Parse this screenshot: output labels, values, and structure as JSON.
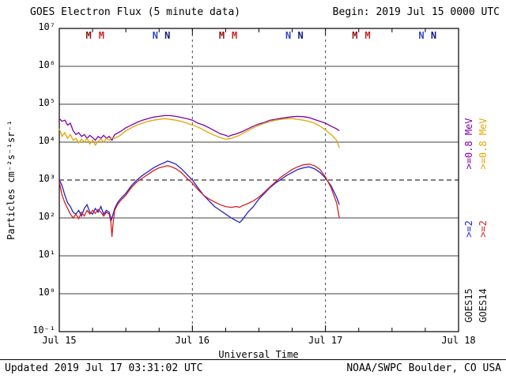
{
  "header": {
    "title": "GOES Electron Flux (5 minute data)",
    "begin": "Begin: 2019 Jul 15 0000 UTC"
  },
  "footer": {
    "updated": "Updated 2019 Jul 17 03:31:02 UTC",
    "source": "NOAA/SWPC Boulder, CO USA"
  },
  "axes": {
    "ylabel": "Particles cm⁻²s⁻¹sr⁻¹",
    "xlabel": "Universal Time",
    "y_tick_labels": [
      "10⁷",
      "10⁶",
      "10⁵",
      "10⁴",
      "10³",
      "10²",
      "10¹",
      "10⁰",
      "10⁻¹"
    ],
    "y_exponents": [
      7,
      6,
      5,
      4,
      3,
      2,
      1,
      0,
      -1
    ],
    "x_tick_labels": [
      "Jul 15",
      "Jul 16",
      "Jul 17",
      "Jul 18"
    ],
    "x_tick_hours": [
      0,
      24,
      48,
      72
    ],
    "threshold_exponent": 3,
    "day_line_hours": [
      24,
      48
    ]
  },
  "legend": {
    "columns": [
      {
        "satellite": "GOES15",
        "energy_high": ">=0.8 MeV",
        "energy_low": ">=2",
        "color_high": "#7d00a8",
        "color_low": "#2323c8",
        "color_label": "#111111"
      },
      {
        "satellite": "GOES14",
        "energy_high": ">=0.8 MeV",
        "energy_low": ">=2",
        "color_high": "#dfa800",
        "color_low": "#d42020",
        "color_label": "#111111"
      }
    ]
  },
  "markers": {
    "midnight_label": "M",
    "noon_label": "N",
    "midnight": [
      {
        "color": "#8f1010",
        "hours": [
          5.3,
          29.3,
          53.3
        ]
      },
      {
        "color": "#cc2222",
        "hours": [
          7.6,
          31.6,
          55.6
        ]
      }
    ],
    "noon": [
      {
        "color": "#2b46cc",
        "hours": [
          17.3,
          41.3,
          65.3
        ]
      },
      {
        "color": "#101a86",
        "hours": [
          19.5,
          43.5,
          67.5
        ]
      }
    ]
  },
  "chart_data": {
    "type": "line",
    "title": "GOES Electron Flux (5 minute data)",
    "xlabel": "Universal Time",
    "ylabel": "Particles cm⁻²s⁻¹sr⁻¹",
    "x_unit": "hours since 2019-07-15 00:00 UTC",
    "y_scale": "log10",
    "ylim_log10": [
      -1,
      7
    ],
    "xlim_hours": [
      0,
      72
    ],
    "grid": "horizontal decades solid, threshold 10^3 dashed, day boundaries dashed vertical",
    "legend_position": "right, rotated 90",
    "series": [
      {
        "name": "GOES15 >=0.8 MeV",
        "color": "#7d00a8",
        "points": [
          [
            0,
            4.62
          ],
          [
            0.5,
            4.55
          ],
          [
            1,
            4.58
          ],
          [
            1.5,
            4.45
          ],
          [
            2,
            4.5
          ],
          [
            2.5,
            4.3
          ],
          [
            3,
            4.2
          ],
          [
            3.5,
            4.25
          ],
          [
            4,
            4.15
          ],
          [
            4.5,
            4.2
          ],
          [
            5,
            4.1
          ],
          [
            5.5,
            4.18
          ],
          [
            6,
            4.12
          ],
          [
            6.5,
            4.05
          ],
          [
            7,
            4.15
          ],
          [
            7.5,
            4.1
          ],
          [
            8,
            4.18
          ],
          [
            8.5,
            4.1
          ],
          [
            9,
            4.15
          ],
          [
            9.5,
            4.05
          ],
          [
            10,
            4.2
          ],
          [
            11,
            4.28
          ],
          [
            12,
            4.38
          ],
          [
            13,
            4.45
          ],
          [
            14,
            4.52
          ],
          [
            15,
            4.58
          ],
          [
            16,
            4.62
          ],
          [
            17,
            4.66
          ],
          [
            18,
            4.68
          ],
          [
            19,
            4.7
          ],
          [
            20,
            4.7
          ],
          [
            21,
            4.68
          ],
          [
            22,
            4.65
          ],
          [
            23,
            4.62
          ],
          [
            24,
            4.58
          ],
          [
            25,
            4.5
          ],
          [
            26,
            4.45
          ],
          [
            27,
            4.38
          ],
          [
            28,
            4.3
          ],
          [
            29,
            4.22
          ],
          [
            30,
            4.18
          ],
          [
            30.5,
            4.15
          ],
          [
            31,
            4.18
          ],
          [
            32,
            4.22
          ],
          [
            33,
            4.28
          ],
          [
            34,
            4.35
          ],
          [
            35,
            4.42
          ],
          [
            36,
            4.48
          ],
          [
            37,
            4.52
          ],
          [
            38,
            4.58
          ],
          [
            39,
            4.6
          ],
          [
            40,
            4.63
          ],
          [
            41,
            4.65
          ],
          [
            42,
            4.67
          ],
          [
            43,
            4.68
          ],
          [
            44,
            4.67
          ],
          [
            45,
            4.65
          ],
          [
            46,
            4.6
          ],
          [
            47,
            4.55
          ],
          [
            48,
            4.5
          ],
          [
            49,
            4.42
          ],
          [
            50,
            4.35
          ],
          [
            50.5,
            4.3
          ]
        ]
      },
      {
        "name": "GOES14 >=0.8 MeV",
        "color": "#dfa800",
        "points": [
          [
            0,
            4.35
          ],
          [
            0.5,
            4.15
          ],
          [
            1,
            4.25
          ],
          [
            1.5,
            4.1
          ],
          [
            2,
            4.2
          ],
          [
            2.5,
            4.05
          ],
          [
            3,
            4.1
          ],
          [
            3.5,
            3.98
          ],
          [
            4,
            4.08
          ],
          [
            4.5,
            4.0
          ],
          [
            5,
            4.1
          ],
          [
            5.5,
            3.95
          ],
          [
            6,
            4.05
          ],
          [
            6.5,
            3.92
          ],
          [
            7,
            4.02
          ],
          [
            7.5,
            4.08
          ],
          [
            8,
            4.0
          ],
          [
            8.5,
            4.1
          ],
          [
            9,
            4.05
          ],
          [
            9.5,
            4.12
          ],
          [
            10,
            4.1
          ],
          [
            11,
            4.18
          ],
          [
            12,
            4.3
          ],
          [
            13,
            4.38
          ],
          [
            14,
            4.45
          ],
          [
            15,
            4.5
          ],
          [
            16,
            4.55
          ],
          [
            17,
            4.58
          ],
          [
            18,
            4.6
          ],
          [
            19,
            4.62
          ],
          [
            20,
            4.6
          ],
          [
            21,
            4.58
          ],
          [
            22,
            4.55
          ],
          [
            23,
            4.5
          ],
          [
            24,
            4.45
          ],
          [
            25,
            4.4
          ],
          [
            26,
            4.32
          ],
          [
            27,
            4.25
          ],
          [
            28,
            4.18
          ],
          [
            29,
            4.12
          ],
          [
            30,
            4.08
          ],
          [
            31,
            4.1
          ],
          [
            32,
            4.15
          ],
          [
            33,
            4.22
          ],
          [
            34,
            4.3
          ],
          [
            35,
            4.38
          ],
          [
            36,
            4.44
          ],
          [
            37,
            4.5
          ],
          [
            38,
            4.54
          ],
          [
            39,
            4.58
          ],
          [
            40,
            4.6
          ],
          [
            41,
            4.62
          ],
          [
            42,
            4.62
          ],
          [
            43,
            4.6
          ],
          [
            44,
            4.58
          ],
          [
            45,
            4.55
          ],
          [
            46,
            4.5
          ],
          [
            47,
            4.42
          ],
          [
            48,
            4.32
          ],
          [
            49,
            4.2
          ],
          [
            50,
            4.05
          ],
          [
            50.5,
            3.85
          ]
        ]
      },
      {
        "name": "GOES15 >=2 MeV",
        "color": "#2323c8",
        "points": [
          [
            0,
            3.0
          ],
          [
            0.5,
            2.85
          ],
          [
            1,
            2.6
          ],
          [
            1.5,
            2.4
          ],
          [
            2,
            2.3
          ],
          [
            2.5,
            2.15
          ],
          [
            3,
            2.1
          ],
          [
            3.5,
            2.2
          ],
          [
            4,
            2.05
          ],
          [
            4.5,
            2.25
          ],
          [
            5,
            2.35
          ],
          [
            5.5,
            2.15
          ],
          [
            6,
            2.1
          ],
          [
            6.5,
            2.25
          ],
          [
            7,
            2.15
          ],
          [
            7.5,
            2.3
          ],
          [
            8,
            2.1
          ],
          [
            8.5,
            2.2
          ],
          [
            9,
            2.15
          ],
          [
            9.4,
            1.95
          ],
          [
            9.6,
            2.05
          ],
          [
            10,
            2.25
          ],
          [
            10.5,
            2.4
          ],
          [
            11,
            2.5
          ],
          [
            12,
            2.65
          ],
          [
            13,
            2.85
          ],
          [
            14,
            3.0
          ],
          [
            15,
            3.12
          ],
          [
            16,
            3.22
          ],
          [
            17,
            3.32
          ],
          [
            18,
            3.4
          ],
          [
            19,
            3.46
          ],
          [
            19.5,
            3.5
          ],
          [
            20,
            3.48
          ],
          [
            21,
            3.42
          ],
          [
            22,
            3.3
          ],
          [
            23,
            3.15
          ],
          [
            24,
            3.0
          ],
          [
            25,
            2.8
          ],
          [
            26,
            2.6
          ],
          [
            27,
            2.45
          ],
          [
            28,
            2.3
          ],
          [
            29,
            2.2
          ],
          [
            30,
            2.1
          ],
          [
            31,
            2.0
          ],
          [
            32,
            1.92
          ],
          [
            32.5,
            1.88
          ],
          [
            33,
            1.95
          ],
          [
            34,
            2.15
          ],
          [
            35,
            2.3
          ],
          [
            36,
            2.5
          ],
          [
            37,
            2.65
          ],
          [
            38,
            2.8
          ],
          [
            39,
            2.92
          ],
          [
            40,
            3.02
          ],
          [
            41,
            3.12
          ],
          [
            42,
            3.2
          ],
          [
            43,
            3.28
          ],
          [
            44,
            3.32
          ],
          [
            45,
            3.35
          ],
          [
            46,
            3.3
          ],
          [
            47,
            3.2
          ],
          [
            48,
            3.05
          ],
          [
            49,
            2.85
          ],
          [
            50,
            2.55
          ],
          [
            50.5,
            2.35
          ]
        ]
      },
      {
        "name": "GOES14 >=2 MeV",
        "color": "#d42020",
        "points": [
          [
            0,
            2.95
          ],
          [
            0.5,
            2.6
          ],
          [
            1,
            2.4
          ],
          [
            1.5,
            2.25
          ],
          [
            2,
            2.1
          ],
          [
            2.5,
            2.0
          ],
          [
            3,
            2.1
          ],
          [
            3.5,
            1.98
          ],
          [
            4,
            2.15
          ],
          [
            4.5,
            2.05
          ],
          [
            5,
            2.2
          ],
          [
            5.5,
            2.1
          ],
          [
            6,
            2.2
          ],
          [
            6.5,
            2.12
          ],
          [
            7,
            2.22
          ],
          [
            7.5,
            2.15
          ],
          [
            8,
            2.05
          ],
          [
            8.5,
            2.15
          ],
          [
            9,
            2.1
          ],
          [
            9.3,
            1.9
          ],
          [
            9.5,
            1.5
          ],
          [
            9.7,
            1.85
          ],
          [
            10,
            2.2
          ],
          [
            10.5,
            2.35
          ],
          [
            11,
            2.45
          ],
          [
            12,
            2.6
          ],
          [
            13,
            2.8
          ],
          [
            14,
            2.95
          ],
          [
            15,
            3.05
          ],
          [
            16,
            3.15
          ],
          [
            17,
            3.25
          ],
          [
            18,
            3.32
          ],
          [
            19,
            3.36
          ],
          [
            19.5,
            3.38
          ],
          [
            20,
            3.36
          ],
          [
            21,
            3.3
          ],
          [
            22,
            3.2
          ],
          [
            23,
            3.05
          ],
          [
            24,
            2.92
          ],
          [
            25,
            2.75
          ],
          [
            26,
            2.6
          ],
          [
            27,
            2.5
          ],
          [
            28,
            2.42
          ],
          [
            29,
            2.35
          ],
          [
            30,
            2.3
          ],
          [
            31,
            2.28
          ],
          [
            32,
            2.3
          ],
          [
            32.5,
            2.28
          ],
          [
            33,
            2.32
          ],
          [
            34,
            2.38
          ],
          [
            35,
            2.45
          ],
          [
            36,
            2.55
          ],
          [
            37,
            2.68
          ],
          [
            38,
            2.82
          ],
          [
            39,
            2.95
          ],
          [
            40,
            3.08
          ],
          [
            41,
            3.18
          ],
          [
            42,
            3.28
          ],
          [
            43,
            3.35
          ],
          [
            44,
            3.4
          ],
          [
            45,
            3.42
          ],
          [
            46,
            3.38
          ],
          [
            47,
            3.28
          ],
          [
            48,
            3.08
          ],
          [
            49,
            2.8
          ],
          [
            50,
            2.4
          ],
          [
            50.5,
            2.0
          ]
        ]
      }
    ]
  }
}
